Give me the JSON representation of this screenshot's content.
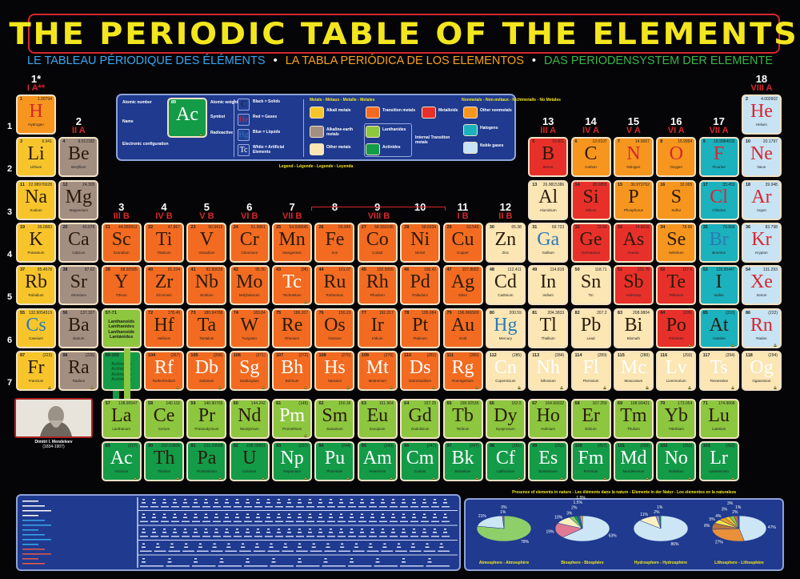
{
  "title": "THE PERIODIC TABLE OF THE ELEMENTS",
  "subtitles": [
    {
      "text": "LE TABLEAU PÉRIODIQUE DES ÉLÉMENTS",
      "color": "#3aa6f0"
    },
    {
      "text": "LA TABLA PERIÓDICA DE LOS ELEMENTOS",
      "color": "#f6a21c"
    },
    {
      "text": "DAS PERIODENSYSTEM DER ELEMENTE",
      "color": "#39b54a"
    }
  ],
  "separator": "•",
  "colors": {
    "a": "#f7c52b",
    "ae": "#a38e82",
    "om": "#fbe6b4",
    "t": "#f26b21",
    "md": "#e8302a",
    "nm": "#f7961e",
    "h": "#1bb1bd",
    "n": "#c8e3f3",
    "l": "#8dc63f",
    "ac": "#139b48"
  },
  "state_colors": {
    "s": "#2a1a0a",
    "g": "#d7262e",
    "l": "#2a7ab8",
    "x": "#ffffff"
  },
  "periods": [
    "1",
    "2",
    "3",
    "4",
    "5",
    "6",
    "7"
  ],
  "groups": [
    {
      "num": "1*",
      "roman": "I A**"
    },
    {
      "num": "2",
      "roman": "II A"
    },
    {
      "num": "3",
      "roman": "III B"
    },
    {
      "num": "4",
      "roman": "IV B"
    },
    {
      "num": "5",
      "roman": "V B"
    },
    {
      "num": "6",
      "roman": "VI B"
    },
    {
      "num": "7",
      "roman": "VII B"
    },
    {
      "num": "8",
      "roman": ""
    },
    {
      "num": "9",
      "roman": ""
    },
    {
      "num": "10",
      "roman": ""
    },
    {
      "num": "11",
      "roman": "I B"
    },
    {
      "num": "12",
      "roman": "II B"
    },
    {
      "num": "13",
      "roman": "III A"
    },
    {
      "num": "14",
      "roman": "IV A"
    },
    {
      "num": "15",
      "roman": "V A"
    },
    {
      "num": "16",
      "roman": "VI A"
    },
    {
      "num": "17",
      "roman": "VII A"
    },
    {
      "num": "18",
      "roman": "VIII A"
    }
  ],
  "group_8_10_label": "VIII B",
  "placeholders": {
    "lanthanoids": [
      "Lanthanoids",
      "Lanthanides",
      "Lanthanoide",
      "Lantánidos"
    ],
    "lanthanoids_range": "57-71",
    "actinoids": [
      "Actinoids",
      "Actinides",
      "Actinoide",
      "Actínidos"
    ],
    "actinoids_range": "89-103"
  },
  "elements": [
    [
      1,
      "H",
      "1.00794",
      "Hydrogen",
      "nm",
      "g"
    ],
    [
      2,
      "He",
      "4.002602",
      "Helium",
      "n",
      "g"
    ],
    [
      3,
      "Li",
      "6.941",
      "Lithium",
      "a",
      "s"
    ],
    [
      4,
      "Be",
      "9.012182",
      "Beryllium",
      "ae",
      "s"
    ],
    [
      5,
      "B",
      "10.811",
      "Boron",
      "md",
      "s"
    ],
    [
      6,
      "C",
      "12.0107",
      "Carbon",
      "nm",
      "s"
    ],
    [
      7,
      "N",
      "14.0067",
      "Nitrogen",
      "nm",
      "g"
    ],
    [
      8,
      "O",
      "15.9994",
      "Oxygen",
      "nm",
      "g"
    ],
    [
      9,
      "F",
      "18.9984032",
      "Fluorine",
      "h",
      "g"
    ],
    [
      10,
      "Ne",
      "20.1797",
      "Neon",
      "n",
      "g"
    ],
    [
      11,
      "Na",
      "22.98976928",
      "Sodium",
      "a",
      "s"
    ],
    [
      12,
      "Mg",
      "24.305",
      "Magnesium",
      "ae",
      "s"
    ],
    [
      13,
      "Al",
      "26.9815386",
      "Aluminium",
      "om",
      "s"
    ],
    [
      14,
      "Si",
      "28.0855",
      "Silicon",
      "md",
      "s"
    ],
    [
      15,
      "P",
      "30.973762",
      "Phosphorus",
      "nm",
      "s"
    ],
    [
      16,
      "S",
      "32.065",
      "Sulfur",
      "nm",
      "s"
    ],
    [
      17,
      "Cl",
      "35.453",
      "Chlorine",
      "h",
      "g"
    ],
    [
      18,
      "Ar",
      "39.948",
      "Argon",
      "n",
      "g"
    ],
    [
      19,
      "K",
      "39.0983",
      "Potassium",
      "a",
      "s"
    ],
    [
      20,
      "Ca",
      "40.078",
      "Calcium",
      "ae",
      "s"
    ],
    [
      21,
      "Sc",
      "44.955912",
      "Scandium",
      "t",
      "s"
    ],
    [
      22,
      "Ti",
      "47.867",
      "Titanium",
      "t",
      "s"
    ],
    [
      23,
      "V",
      "50.9415",
      "Vanadium",
      "t",
      "s"
    ],
    [
      24,
      "Cr",
      "51.9961",
      "Chromium",
      "t",
      "s"
    ],
    [
      25,
      "Mn",
      "54.938045",
      "Manganese",
      "t",
      "s"
    ],
    [
      26,
      "Fe",
      "55.845",
      "Iron",
      "t",
      "s"
    ],
    [
      27,
      "Co",
      "58.933195",
      "Cobalt",
      "t",
      "s"
    ],
    [
      28,
      "Ni",
      "58.6934",
      "Nickel",
      "t",
      "s"
    ],
    [
      29,
      "Cu",
      "63.546",
      "Copper",
      "t",
      "s"
    ],
    [
      30,
      "Zn",
      "65.38",
      "Zinc",
      "om",
      "s"
    ],
    [
      31,
      "Ga",
      "69.723",
      "Gallium",
      "om",
      "l"
    ],
    [
      32,
      "Ge",
      "72.64",
      "Germanium",
      "md",
      "s"
    ],
    [
      33,
      "As",
      "74.9216",
      "Arsenic",
      "md",
      "s"
    ],
    [
      34,
      "Se",
      "78.96",
      "Selenium",
      "nm",
      "s"
    ],
    [
      35,
      "Br",
      "79.904",
      "Bromine",
      "h",
      "l"
    ],
    [
      36,
      "Kr",
      "83.798",
      "Krypton",
      "n",
      "g"
    ],
    [
      37,
      "Rb",
      "85.4678",
      "Rubidium",
      "a",
      "s"
    ],
    [
      38,
      "Sr",
      "87.62",
      "Strontium",
      "ae",
      "s"
    ],
    [
      39,
      "Y",
      "88.90585",
      "Yttrium",
      "t",
      "s"
    ],
    [
      40,
      "Zr",
      "91.224",
      "Zirconium",
      "t",
      "s"
    ],
    [
      41,
      "Nb",
      "92.90638",
      "Niobium",
      "t",
      "s"
    ],
    [
      42,
      "Mo",
      "95.96",
      "Molybdenum",
      "t",
      "s"
    ],
    [
      43,
      "Tc",
      "(98)",
      "Technetium",
      "t",
      "x"
    ],
    [
      44,
      "Ru",
      "101.07",
      "Ruthenium",
      "t",
      "s"
    ],
    [
      45,
      "Rh",
      "102.9055",
      "Rhodium",
      "t",
      "s"
    ],
    [
      46,
      "Pd",
      "106.42",
      "Palladium",
      "t",
      "s"
    ],
    [
      47,
      "Ag",
      "107.8682",
      "Silver",
      "t",
      "s"
    ],
    [
      48,
      "Cd",
      "112.411",
      "Cadmium",
      "om",
      "s"
    ],
    [
      49,
      "In",
      "114.818",
      "Indium",
      "om",
      "s"
    ],
    [
      50,
      "Sn",
      "118.71",
      "Tin",
      "om",
      "s"
    ],
    [
      51,
      "Sb",
      "121.76",
      "Antimony",
      "md",
      "s"
    ],
    [
      52,
      "Te",
      "127.6",
      "Tellurium",
      "md",
      "s"
    ],
    [
      53,
      "I",
      "126.90447",
      "Iodine",
      "h",
      "s"
    ],
    [
      54,
      "Xe",
      "131.293",
      "Xenon",
      "n",
      "g"
    ],
    [
      55,
      "Cs",
      "132.9054519",
      "Caesium",
      "a",
      "l"
    ],
    [
      56,
      "Ba",
      "137.327",
      "Barium",
      "ae",
      "s"
    ],
    [
      57,
      "La",
      "138.90547",
      "Lanthanum",
      "l",
      "s"
    ],
    [
      58,
      "Ce",
      "140.116",
      "Cerium",
      "l",
      "s"
    ],
    [
      59,
      "Pr",
      "140.90765",
      "Praseodymium",
      "l",
      "s"
    ],
    [
      60,
      "Nd",
      "144.242",
      "Neodymium",
      "l",
      "s"
    ],
    [
      61,
      "Pm",
      "(145)",
      "Promethium",
      "l",
      "x"
    ],
    [
      62,
      "Sm",
      "150.36",
      "Samarium",
      "l",
      "s"
    ],
    [
      63,
      "Eu",
      "151.964",
      "Europium",
      "l",
      "s"
    ],
    [
      64,
      "Gd",
      "157.25",
      "Gadolinium",
      "l",
      "s"
    ],
    [
      65,
      "Tb",
      "158.92535",
      "Terbium",
      "l",
      "s"
    ],
    [
      66,
      "Dy",
      "162.5",
      "Dysprosium",
      "l",
      "s"
    ],
    [
      67,
      "Ho",
      "164.93032",
      "Holmium",
      "l",
      "s"
    ],
    [
      68,
      "Er",
      "167.259",
      "Erbium",
      "l",
      "s"
    ],
    [
      69,
      "Tm",
      "168.93421",
      "Thulium",
      "l",
      "s"
    ],
    [
      70,
      "Yb",
      "173.054",
      "Ytterbium",
      "l",
      "s"
    ],
    [
      71,
      "Lu",
      "174.9668",
      "Lutetium",
      "l",
      "s"
    ],
    [
      72,
      "Hf",
      "178.49",
      "Hafnium",
      "t",
      "s"
    ],
    [
      73,
      "Ta",
      "180.94788",
      "Tantalum",
      "t",
      "s"
    ],
    [
      74,
      "W",
      "183.84",
      "Tungsten",
      "t",
      "s"
    ],
    [
      75,
      "Re",
      "186.207",
      "Rhenium",
      "t",
      "s"
    ],
    [
      76,
      "Os",
      "190.23",
      "Osmium",
      "t",
      "s"
    ],
    [
      77,
      "Ir",
      "192.217",
      "Iridium",
      "t",
      "s"
    ],
    [
      78,
      "Pt",
      "195.084",
      "Platinum",
      "t",
      "s"
    ],
    [
      79,
      "Au",
      "196.966569",
      "Gold",
      "t",
      "s"
    ],
    [
      80,
      "Hg",
      "200.59",
      "Mercury",
      "om",
      "l"
    ],
    [
      81,
      "Tl",
      "204.3833",
      "Thallium",
      "om",
      "s"
    ],
    [
      82,
      "Pb",
      "207.2",
      "Lead",
      "om",
      "s"
    ],
    [
      83,
      "Bi",
      "208.9804",
      "Bismuth",
      "om",
      "s"
    ],
    [
      84,
      "Po",
      "(209)",
      "Polonium",
      "md",
      "s"
    ],
    [
      85,
      "At",
      "(210)",
      "Astatine",
      "h",
      "s"
    ],
    [
      86,
      "Rn",
      "(222)",
      "Radon",
      "n",
      "g"
    ],
    [
      87,
      "Fr",
      "(223)",
      "Francium",
      "a",
      "s"
    ],
    [
      88,
      "Ra",
      "(226)",
      "Radium",
      "ae",
      "s"
    ],
    [
      89,
      "Ac",
      "(227)",
      "Actinium",
      "ac",
      "x"
    ],
    [
      90,
      "Th",
      "232.03806",
      "Thorium",
      "ac",
      "s"
    ],
    [
      91,
      "Pa",
      "231.03588",
      "Protactinium",
      "ac",
      "s"
    ],
    [
      92,
      "U",
      "238.02891",
      "Uranium",
      "ac",
      "s"
    ],
    [
      93,
      "Np",
      "(237)",
      "Neptunium",
      "ac",
      "x"
    ],
    [
      94,
      "Pu",
      "(244)",
      "Plutonium",
      "ac",
      "x"
    ],
    [
      95,
      "Am",
      "(243)",
      "Americium",
      "ac",
      "x"
    ],
    [
      96,
      "Cm",
      "(247)",
      "Curium",
      "ac",
      "x"
    ],
    [
      97,
      "Bk",
      "(247)",
      "Berkelium",
      "ac",
      "x"
    ],
    [
      98,
      "Cf",
      "(251)",
      "Californium",
      "ac",
      "x"
    ],
    [
      99,
      "Es",
      "(252)",
      "Einsteinium",
      "ac",
      "x"
    ],
    [
      100,
      "Fm",
      "(257)",
      "Fermium",
      "ac",
      "x"
    ],
    [
      101,
      "Md",
      "(258)",
      "Mendelevium",
      "ac",
      "x"
    ],
    [
      102,
      "No",
      "(259)",
      "Nobelium",
      "ac",
      "x"
    ],
    [
      103,
      "Lr",
      "(262)",
      "Lawrencium",
      "ac",
      "x"
    ],
    [
      104,
      "Rf",
      "(267)",
      "Rutherfordium",
      "t",
      "x"
    ],
    [
      105,
      "Db",
      "(268)",
      "Dubnium",
      "t",
      "x"
    ],
    [
      106,
      "Sg",
      "(271)",
      "Seaborgium",
      "t",
      "x"
    ],
    [
      107,
      "Bh",
      "(272)",
      "Bohrium",
      "t",
      "x"
    ],
    [
      108,
      "Hs",
      "(270)",
      "Hassium",
      "t",
      "x"
    ],
    [
      109,
      "Mt",
      "(276)",
      "Meitnerium",
      "t",
      "x"
    ],
    [
      110,
      "Ds",
      "(281)",
      "Darmstadtium",
      "t",
      "x"
    ],
    [
      111,
      "Rg",
      "(280)",
      "Roentgenium",
      "t",
      "x"
    ],
    [
      112,
      "Cn",
      "(285)",
      "Copernicium",
      "om",
      "x"
    ],
    [
      113,
      "Nh",
      "(284)",
      "Nihonium",
      "om",
      "x"
    ],
    [
      114,
      "Fl",
      "(289)",
      "Flerovium",
      "om",
      "x"
    ],
    [
      115,
      "Mc",
      "(288)",
      "Moscovium",
      "om",
      "x"
    ],
    [
      116,
      "Lv",
      "(293)",
      "Livermorium",
      "om",
      "x"
    ],
    [
      117,
      "Ts",
      "(294)",
      "Tennessine",
      "om",
      "x"
    ],
    [
      118,
      "Og",
      "(294)",
      "Oganesson",
      "om",
      "x"
    ]
  ],
  "legend": {
    "sample_symbol": "Ac",
    "sample_number": "89",
    "left_labels": [
      "Atomic number",
      "Name",
      "Electronic configuration"
    ],
    "right_labels": [
      "Atomic weight",
      "Symbol",
      "Radioactive"
    ],
    "states": [
      {
        "sym": "C",
        "label": "Black = Solids",
        "state": "s"
      },
      {
        "sym": "He",
        "label": "Red = Gases",
        "state": "g"
      },
      {
        "sym": "Hg",
        "label": "Blue = Liquids",
        "state": "l"
      },
      {
        "sym": "Tc",
        "label": "White = Artificial Elements",
        "state": "x"
      }
    ],
    "metals_title": "Metals - Métaux - Metalle - Metales",
    "metals": [
      {
        "cat": "a",
        "label": "Alkali metals"
      },
      {
        "cat": "ae",
        "label": "Alkaline-earth metals"
      },
      {
        "cat": "om",
        "label": "Other metals"
      },
      {
        "cat": "t",
        "label": "Transition metals"
      },
      {
        "cat": "l",
        "label": "Lanthanides"
      },
      {
        "cat": "ac",
        "label": "Actinides"
      },
      {
        "cat": "md",
        "label": "Metalloids"
      }
    ],
    "internal_transition": "Internal Transition metals",
    "nonmetals_title": "Nonmetals - Non-métaux - Nichtmetalle - No Metales",
    "nonmetals": [
      {
        "cat": "nm",
        "label": "Other nonmetals"
      },
      {
        "cat": "h",
        "label": "Halogens"
      },
      {
        "cat": "n",
        "label": "Noble gases"
      }
    ],
    "caption": "Legend - Légende - Legende - Leyenda"
  },
  "mendeleev": {
    "name": "Dimitri I. Mendeleev",
    "years": "(1834-1907)"
  },
  "nature": {
    "title": "Presence of elements in nature - Les éléments dans la nature - Elemente in der Natur - Los elementos en la naturaleza",
    "pies": [
      {
        "label": "Atmosphere - Atmosphère",
        "slices": [
          78,
          21,
          1,
          0
        ],
        "labels": [
          "78%",
          "21%",
          "1%",
          "0%"
        ],
        "colors": [
          "#8fcf6a",
          "#cde6f5",
          "#d9577a",
          "#1b62c9"
        ]
      },
      {
        "label": "Biosphere - Biosphère",
        "slices": [
          63,
          19,
          10,
          3,
          2,
          1.5,
          1.5
        ],
        "labels": [
          "63%",
          "19%",
          "10%",
          "3%",
          "2%",
          "1.5%",
          "1.5%"
        ],
        "colors": [
          "#cde6f5",
          "#e07a92",
          "#fbf1c0",
          "#8fcf6a",
          "#139b48",
          "#1b62c9",
          "#f6a21c"
        ]
      },
      {
        "label": "Hydrosphere - Hydrosphère",
        "slices": [
          86,
          11,
          2,
          1
        ],
        "labels": [
          "86%",
          "11%",
          "2%",
          "1%"
        ],
        "colors": [
          "#cde6f5",
          "#fbf1c0",
          "#a58fd0",
          "#139b48"
        ]
      },
      {
        "label": "Lithosphere - Lithosphère",
        "slices": [
          47,
          27,
          8,
          5,
          4,
          3,
          3,
          2,
          1
        ],
        "labels": [
          "47%",
          "27%",
          "8%",
          "5%",
          "4%",
          "3%",
          "3%",
          "2%",
          "1%"
        ],
        "colors": [
          "#cde6f5",
          "#e8913a",
          "#b6743e",
          "#f6e54a",
          "#f29e2a",
          "#f7c52b",
          "#8dc63f",
          "#e2643a",
          "#1b62c9"
        ]
      }
    ]
  }
}
